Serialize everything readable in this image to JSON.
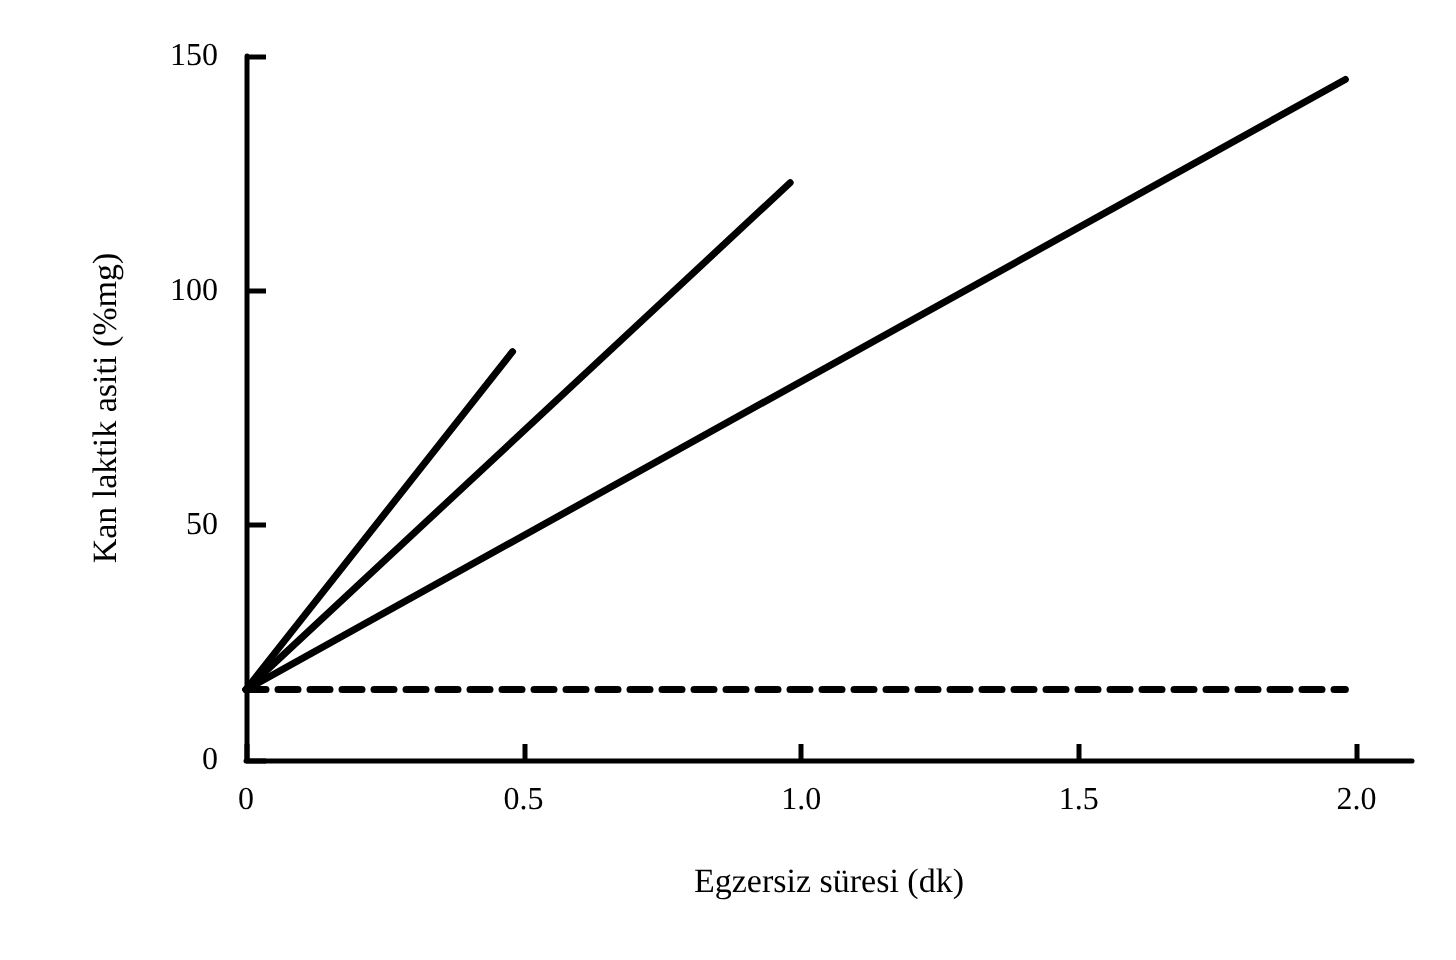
{
  "chart_data": {
    "type": "line",
    "xlabel": "Egzersiz süresi (dk)",
    "ylabel": "Kan laktik asiti (%mg)",
    "series": [
      {
        "color": "#000000",
        "x": [
          0,
          0.48
        ],
        "values": [
          15,
          87
        ]
      },
      {
        "color": "#000000",
        "x": [
          0,
          0.98
        ],
        "values": [
          15,
          123
        ]
      },
      {
        "color": "#000000",
        "x": [
          0,
          1.98
        ],
        "values": [
          15,
          145
        ]
      },
      {
        "color": "#000000",
        "x": [
          0,
          1.98
        ],
        "values": [
          15,
          15
        ],
        "line_style": "dashed"
      }
    ],
    "xlim": [
      0,
      2.1
    ],
    "xticks": [
      0,
      0.5,
      {
        "value": 1,
        "label": "1.0"
      },
      1.5,
      {
        "value": 2,
        "label": "2.0"
      }
    ],
    "ylim": [
      0,
      150
    ],
    "yticks": [
      0,
      50,
      100,
      150
    ],
    "grid": false,
    "marker": "none",
    "line_style": "solid"
  }
}
